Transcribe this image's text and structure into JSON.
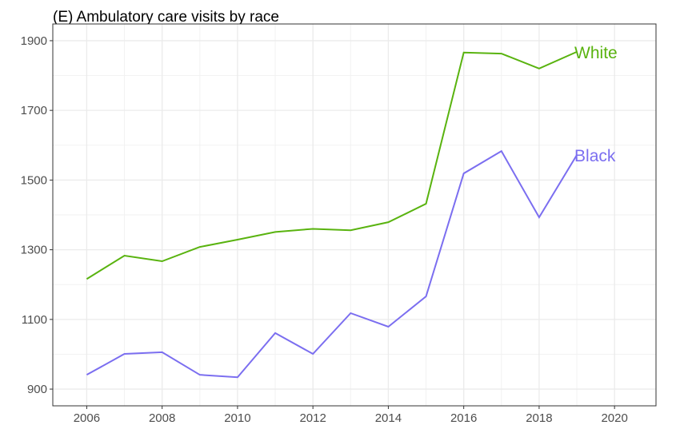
{
  "chart_data": {
    "type": "line",
    "title": "(E) Ambulatory care visits by race",
    "x": [
      2006,
      2007,
      2008,
      2009,
      2010,
      2011,
      2012,
      2013,
      2014,
      2015,
      2016,
      2017,
      2018,
      2019
    ],
    "series": [
      {
        "name": "White",
        "color": "#59b30f",
        "values": [
          1216,
          1283,
          1267,
          1308,
          1329,
          1351,
          1360,
          1356,
          1379,
          1432,
          1866,
          1863,
          1820,
          1868
        ]
      },
      {
        "name": "Black",
        "color": "#7b6ef0",
        "values": [
          941,
          1001,
          1006,
          941,
          934,
          1061,
          1001,
          1118,
          1079,
          1166,
          1519,
          1583,
          1393,
          1572
        ]
      }
    ],
    "xlim": [
      2005.1,
      2021.1
    ],
    "xticks": [
      2006,
      2008,
      2010,
      2012,
      2014,
      2016,
      2018,
      2020
    ],
    "ylim": [
      852,
      1948
    ],
    "yticks": [
      900,
      1100,
      1300,
      1500,
      1700,
      1900
    ],
    "grid": true
  }
}
